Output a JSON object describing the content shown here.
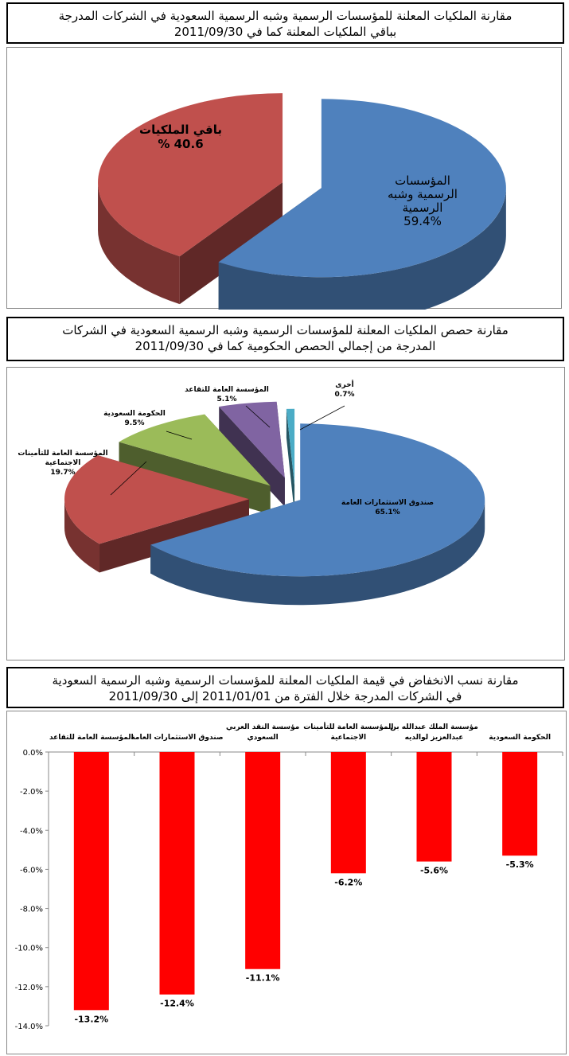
{
  "charts": [
    {
      "title_lines": [
        "مقارنة الملكيات المعلنة للمؤسسات الرسمية وشبه الرسمية السعودية في الشركات المدرجة",
        "بباقي الملكيات المعلنة كما في 2011/09/30"
      ]
    },
    {
      "title_lines": [
        "مقارنة حصص الملكيات المعلنة للمؤسسات الرسمية وشبه الرسمية السعودية في الشركات",
        "المدرجة من إجمالي الحصص الحكومية كما في 2011/09/30"
      ]
    },
    {
      "title_lines": [
        "مقارنة نسب الانخفاض في قيمة الملكيات المعلنة للمؤسسات الرسمية وشبه الرسمية السعودية",
        "في الشركات المدرجة خلال الفترة من 2011/01/01 إلى 2011/09/30"
      ]
    }
  ],
  "chart_data": [
    {
      "type": "pie",
      "style": "3d-exploded",
      "slices": [
        {
          "label_lines": [
            "المؤسسات",
            "الرسمية وشبه",
            "الرسمية"
          ],
          "value_text": "59.4%",
          "value": 59.4,
          "color": "#4F81BD"
        },
        {
          "label_lines": [
            "باقي الملكيات"
          ],
          "value_text": "40.6 %",
          "value": 40.6,
          "color": "#C0504D"
        }
      ]
    },
    {
      "type": "pie",
      "style": "3d-exploded",
      "slices": [
        {
          "label_lines": [
            "صندوق الاستثمارات العامة"
          ],
          "value_text": "65.1%",
          "value": 65.1,
          "color": "#4F81BD"
        },
        {
          "label_lines": [
            "المؤسسة العامة للتأمينات",
            "الاجتماعية"
          ],
          "value_text": "19.7%",
          "value": 19.7,
          "color": "#C0504D"
        },
        {
          "label_lines": [
            "الحكومة السعودية"
          ],
          "value_text": "9.5%",
          "value": 9.5,
          "color": "#9BBB59"
        },
        {
          "label_lines": [
            "المؤسسة العامة للتقاعد"
          ],
          "value_text": "5.1%",
          "value": 5.1,
          "color": "#8064A2"
        },
        {
          "label_lines": [
            "أخرى"
          ],
          "value_text": "0.7%",
          "value": 0.7,
          "color": "#4BACC6"
        }
      ]
    },
    {
      "type": "bar",
      "categories": [
        [
          "المؤسسة العامة للتقاعد"
        ],
        [
          "صندوق الاستثمارات العامة"
        ],
        [
          "مؤسسة النقد العربي",
          "السعودي"
        ],
        [
          "المؤسسة العامة للتأمينات",
          "الاجتماعية"
        ],
        [
          "مؤسسة الملك عبدالله بن",
          "عبدالعزيز لوالديه"
        ],
        [
          "الحكومة السعودية"
        ]
      ],
      "values": [
        -13.2,
        -12.4,
        -11.1,
        -6.2,
        -5.6,
        -5.3
      ],
      "data_labels": [
        "-13.2%",
        "-12.4%",
        "-11.1%",
        "-6.2%",
        "-5.6%",
        "-5.3%"
      ],
      "ylim": [
        -14,
        0
      ],
      "yticks": [
        "0.0%",
        "-2.0%",
        "-4.0%",
        "-6.0%",
        "-8.0%",
        "-10.0%",
        "-12.0%",
        "-14.0%"
      ],
      "bar_color": "#FF0000",
      "grid": false
    }
  ]
}
